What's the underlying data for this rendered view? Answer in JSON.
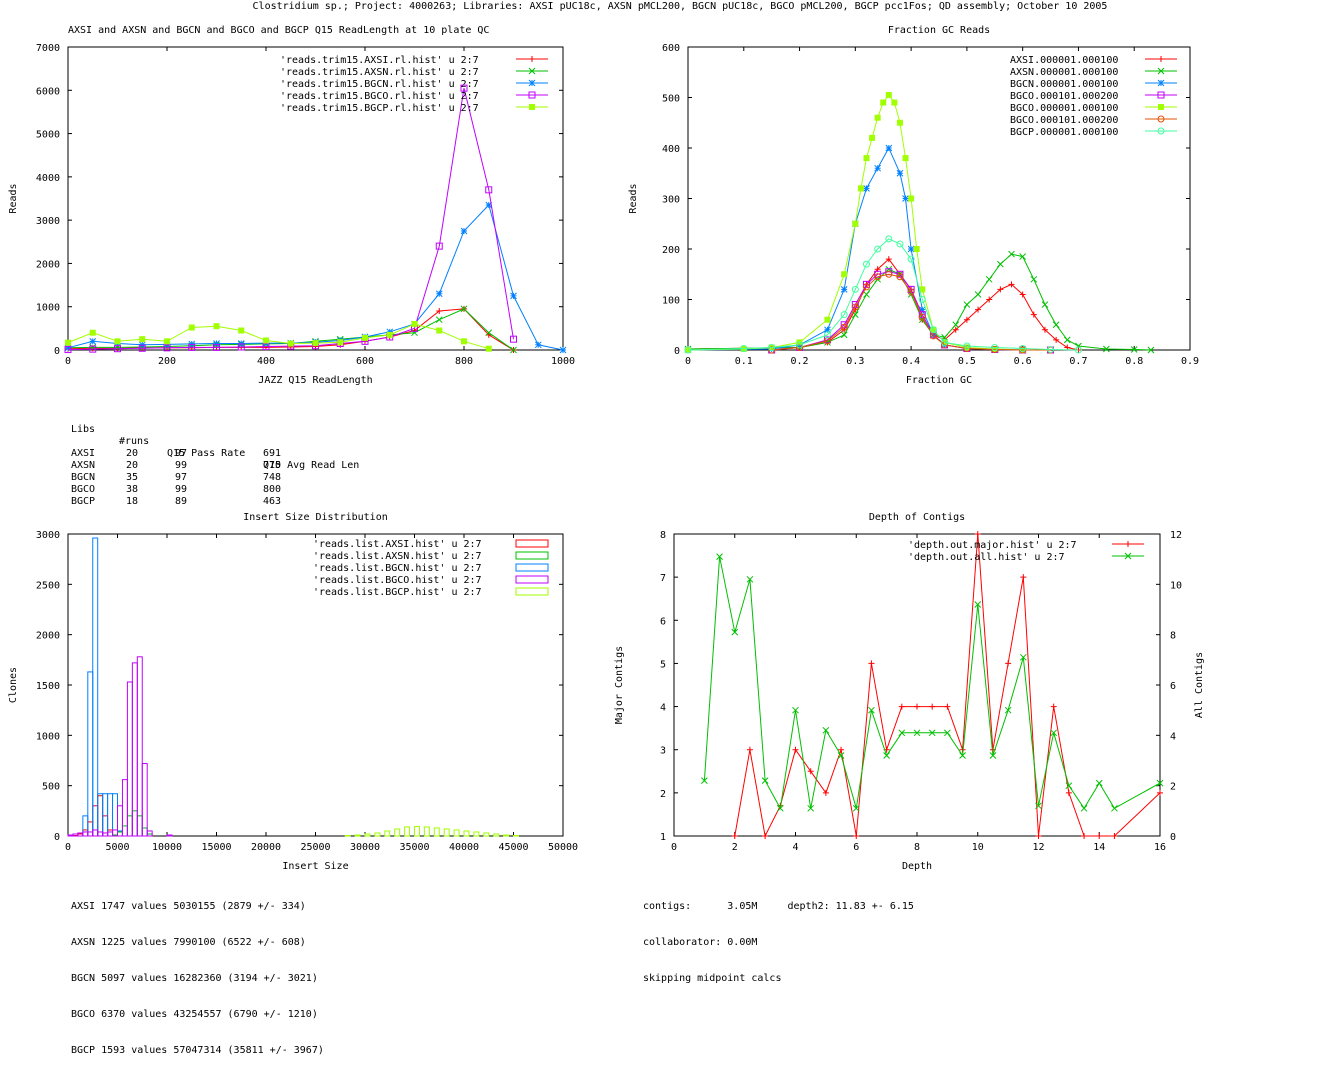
{
  "page_title": "Clostridium sp.; Project: 4000263; Libraries: AXSI pUC18c, AXSN pMCL200, BGCN pUC18c, BGCO pMCL200, BGCP pcc1Fos; QD assembly; October 10 2005",
  "colors": {
    "red": "#ff0000",
    "green": "#00c000",
    "blue": "#0080ff",
    "magenta": "#c000ff",
    "lime": "#a0ff00",
    "orange": "#e05000",
    "teal": "#40ffa0"
  },
  "chart_data": [
    {
      "type": "line",
      "title": "AXSI and AXSN and BGCN and BGCO and BGCP Q15 ReadLength at 10 plate QC",
      "xlabel": "JAZZ Q15 ReadLength",
      "ylabel": "Reads",
      "xlim": [
        0,
        1000
      ],
      "ylim": [
        0,
        7000
      ],
      "xticks": [
        0,
        200,
        400,
        600,
        800,
        1000
      ],
      "yticks": [
        0,
        1000,
        2000,
        3000,
        4000,
        5000,
        6000,
        7000
      ],
      "legend_position": "top-right",
      "series": [
        {
          "name": "'reads.trim15.AXSI.rl.hist' u 2:7",
          "color": "red",
          "marker": "plus",
          "x": [
            0,
            50,
            100,
            150,
            200,
            250,
            300,
            350,
            400,
            450,
            500,
            550,
            600,
            650,
            700,
            750,
            800,
            850,
            900
          ],
          "y": [
            30,
            40,
            40,
            50,
            50,
            50,
            60,
            60,
            60,
            70,
            80,
            120,
            200,
            300,
            450,
            900,
            950,
            350,
            0
          ]
        },
        {
          "name": "'reads.trim15.AXSN.rl.hist' u 2:7",
          "color": "green",
          "marker": "x",
          "x": [
            0,
            50,
            100,
            150,
            200,
            250,
            300,
            350,
            400,
            450,
            500,
            550,
            600,
            650,
            700,
            750,
            800,
            850,
            900
          ],
          "y": [
            50,
            60,
            60,
            70,
            80,
            100,
            120,
            130,
            140,
            150,
            200,
            250,
            300,
            350,
            400,
            700,
            950,
            400,
            0
          ]
        },
        {
          "name": "'reads.trim15.BGCN.rl.hist' u 2:7",
          "color": "blue",
          "marker": "star",
          "x": [
            0,
            50,
            100,
            150,
            200,
            250,
            300,
            350,
            400,
            450,
            500,
            550,
            600,
            650,
            700,
            750,
            800,
            850,
            900,
            950,
            1000
          ],
          "y": [
            50,
            200,
            150,
            120,
            130,
            140,
            150,
            150,
            160,
            160,
            180,
            220,
            300,
            420,
            600,
            1300,
            2750,
            3350,
            1250,
            120,
            0
          ]
        },
        {
          "name": "'reads.trim15.BGCO.rl.hist' u 2:7",
          "color": "magenta",
          "marker": "square",
          "x": [
            0,
            50,
            100,
            150,
            200,
            250,
            300,
            350,
            400,
            450,
            500,
            550,
            600,
            650,
            700,
            750,
            800,
            850,
            900
          ],
          "y": [
            10,
            20,
            30,
            40,
            50,
            60,
            60,
            70,
            80,
            90,
            100,
            150,
            200,
            300,
            500,
            2400,
            6050,
            3700,
            250
          ]
        },
        {
          "name": "'reads.trim15.BGCP.rl.hist' u 2:7",
          "color": "lime",
          "marker": "filled-square",
          "x": [
            0,
            50,
            100,
            150,
            200,
            250,
            300,
            350,
            400,
            450,
            500,
            550,
            600,
            650,
            700,
            750,
            800,
            850
          ],
          "y": [
            170,
            400,
            200,
            250,
            200,
            520,
            550,
            450,
            220,
            150,
            160,
            180,
            280,
            350,
            600,
            450,
            200,
            30
          ]
        }
      ]
    },
    {
      "type": "line",
      "title": "Fraction GC Reads",
      "xlabel": "Fraction GC",
      "ylabel": "Reads",
      "xlim": [
        0,
        0.9
      ],
      "ylim": [
        0,
        600
      ],
      "xticks": [
        0,
        0.1,
        0.2,
        0.3,
        0.4,
        0.5,
        0.6,
        0.7,
        0.8,
        0.9
      ],
      "yticks": [
        0,
        100,
        200,
        300,
        400,
        500,
        600
      ],
      "legend_position": "top-right",
      "series": [
        {
          "name": "AXSI.000001.000100",
          "color": "red",
          "marker": "plus",
          "x": [
            0.0,
            0.2,
            0.25,
            0.28,
            0.3,
            0.32,
            0.34,
            0.36,
            0.38,
            0.4,
            0.42,
            0.44,
            0.46,
            0.48,
            0.5,
            0.52,
            0.54,
            0.56,
            0.58,
            0.6,
            0.62,
            0.64,
            0.66,
            0.68,
            0.7
          ],
          "y": [
            2,
            5,
            15,
            40,
            80,
            130,
            160,
            180,
            150,
            120,
            60,
            30,
            20,
            40,
            60,
            80,
            100,
            120,
            130,
            110,
            70,
            40,
            20,
            5,
            0
          ]
        },
        {
          "name": "AXSN.000001.000100",
          "color": "green",
          "marker": "x",
          "x": [
            0.0,
            0.2,
            0.25,
            0.28,
            0.3,
            0.32,
            0.34,
            0.36,
            0.38,
            0.4,
            0.42,
            0.44,
            0.46,
            0.48,
            0.5,
            0.52,
            0.54,
            0.56,
            0.58,
            0.6,
            0.62,
            0.64,
            0.66,
            0.68,
            0.7,
            0.75,
            0.8,
            0.83
          ],
          "y": [
            2,
            5,
            15,
            30,
            70,
            110,
            140,
            160,
            150,
            110,
            60,
            30,
            25,
            50,
            90,
            110,
            140,
            170,
            190,
            185,
            140,
            90,
            50,
            20,
            8,
            2,
            1,
            0
          ]
        },
        {
          "name": "BGCN.000001.000100",
          "color": "blue",
          "marker": "star",
          "x": [
            0.0,
            0.15,
            0.2,
            0.25,
            0.28,
            0.3,
            0.32,
            0.34,
            0.36,
            0.38,
            0.39,
            0.4,
            0.42,
            0.44,
            0.46,
            0.5,
            0.55,
            0.6
          ],
          "y": [
            0,
            2,
            10,
            40,
            120,
            250,
            320,
            360,
            400,
            350,
            300,
            200,
            80,
            30,
            10,
            3,
            1,
            0
          ]
        },
        {
          "name": "BGCO.000101.000200",
          "color": "magenta",
          "marker": "square",
          "x": [
            0.15,
            0.2,
            0.25,
            0.28,
            0.3,
            0.32,
            0.34,
            0.36,
            0.38,
            0.4,
            0.42,
            0.44,
            0.46,
            0.5,
            0.55,
            0.6,
            0.65
          ],
          "y": [
            0,
            5,
            20,
            50,
            90,
            130,
            150,
            155,
            150,
            120,
            70,
            30,
            10,
            3,
            1,
            0,
            0
          ]
        },
        {
          "name": "BGCO.000001.000100",
          "color": "lime",
          "marker": "filled-square",
          "x": [
            0.0,
            0.1,
            0.15,
            0.2,
            0.25,
            0.28,
            0.3,
            0.31,
            0.32,
            0.33,
            0.34,
            0.35,
            0.36,
            0.37,
            0.38,
            0.39,
            0.4,
            0.41,
            0.42,
            0.44,
            0.46,
            0.5,
            0.55,
            0.6
          ],
          "y": [
            0,
            2,
            5,
            15,
            60,
            150,
            250,
            320,
            380,
            420,
            460,
            490,
            505,
            490,
            450,
            380,
            300,
            200,
            120,
            40,
            15,
            5,
            2,
            0
          ]
        },
        {
          "name": "BGCO.000101.000200",
          "color": "orange",
          "marker": "circle",
          "x": [
            0.15,
            0.2,
            0.25,
            0.28,
            0.3,
            0.32,
            0.34,
            0.36,
            0.38,
            0.4,
            0.42,
            0.44,
            0.46,
            0.5,
            0.55,
            0.6,
            0.65
          ],
          "y": [
            0,
            5,
            18,
            45,
            85,
            125,
            145,
            150,
            145,
            115,
            65,
            28,
            10,
            3,
            1,
            0,
            0
          ]
        },
        {
          "name": "BGCP.000001.000100",
          "color": "teal",
          "marker": "circle",
          "x": [
            0.0,
            0.1,
            0.15,
            0.2,
            0.25,
            0.28,
            0.3,
            0.32,
            0.34,
            0.36,
            0.38,
            0.4,
            0.42,
            0.44,
            0.46,
            0.5,
            0.55,
            0.6,
            0.65,
            0.7
          ],
          "y": [
            0,
            3,
            5,
            10,
            30,
            70,
            120,
            170,
            200,
            220,
            210,
            180,
            100,
            40,
            15,
            8,
            5,
            3,
            1,
            0
          ]
        }
      ]
    },
    {
      "type": "bar",
      "title": "Insert Size Distribution",
      "xlabel": "Insert Size",
      "ylabel": "Clones",
      "xlim": [
        0,
        50000
      ],
      "ylim": [
        0,
        3000
      ],
      "xticks": [
        0,
        5000,
        10000,
        15000,
        20000,
        25000,
        30000,
        35000,
        40000,
        45000,
        50000
      ],
      "yticks": [
        0,
        500,
        1000,
        1500,
        2000,
        2500,
        3000
      ],
      "bin_width": 500,
      "legend_position": "top-right",
      "series": [
        {
          "name": "'reads.list.AXSI.hist' u 2:7",
          "color": "red",
          "x": [
            500,
            1000,
            1500,
            2000,
            2500,
            3000,
            3500,
            4000,
            4500
          ],
          "y": [
            5,
            20,
            60,
            140,
            300,
            400,
            200,
            60,
            10
          ]
        },
        {
          "name": "'reads.list.AXSN.hist' u 2:7",
          "color": "green",
          "x": [
            4500,
            5000,
            5500,
            6000,
            6500,
            7000,
            7500,
            8000
          ],
          "y": [
            10,
            40,
            100,
            200,
            250,
            200,
            80,
            20
          ]
        },
        {
          "name": "'reads.list.BGCN.hist' u 2:7",
          "color": "blue",
          "x": [
            1000,
            1500,
            2000,
            2500,
            3000,
            3500,
            4000,
            4500,
            5000
          ],
          "y": [
            30,
            200,
            1630,
            2960,
            420,
            420,
            420,
            420,
            50
          ]
        },
        {
          "name": "'reads.list.BGCO.hist' u 2:7",
          "color": "magenta",
          "x": [
            0,
            500,
            1000,
            1500,
            2000,
            2500,
            3000,
            3500,
            4000,
            4500,
            5000,
            5500,
            6000,
            6500,
            7000,
            7500,
            8000,
            10000
          ],
          "y": [
            10,
            20,
            30,
            40,
            40,
            60,
            40,
            30,
            40,
            60,
            300,
            560,
            1530,
            1720,
            1780,
            720,
            50,
            10
          ]
        },
        {
          "name": "'reads.list.BGCP.hist' u 2:7",
          "color": "lime",
          "x": [
            28000,
            29000,
            30000,
            31000,
            32000,
            33000,
            34000,
            35000,
            36000,
            37000,
            38000,
            39000,
            40000,
            41000,
            42000,
            43000,
            44000,
            45000
          ],
          "y": [
            5,
            10,
            20,
            30,
            50,
            70,
            90,
            95,
            90,
            80,
            70,
            60,
            50,
            40,
            30,
            20,
            10,
            5
          ]
        }
      ]
    },
    {
      "type": "line",
      "title": "Depth of Contigs",
      "xlabel": "Depth",
      "ylabel": "Major Contigs",
      "y2label": "All Contigs",
      "xlim": [
        0,
        16
      ],
      "ylim": [
        1,
        8
      ],
      "y2lim": [
        0,
        12
      ],
      "xticks": [
        0,
        2,
        4,
        6,
        8,
        10,
        12,
        14,
        16
      ],
      "yticks": [
        1,
        2,
        3,
        4,
        5,
        6,
        7,
        8
      ],
      "y2ticks": [
        0,
        2,
        4,
        6,
        8,
        10,
        12
      ],
      "legend_position": "top-right",
      "series": [
        {
          "name": "'depth.out.major.hist' u 2:7",
          "color": "red",
          "marker": "plus",
          "axis": "y",
          "x": [
            2,
            2.5,
            3,
            3.5,
            4,
            4.5,
            5,
            5.5,
            6,
            6.5,
            7,
            7.5,
            8,
            8.5,
            9,
            9.5,
            10,
            10.5,
            11,
            11.5,
            12,
            12.5,
            13,
            13.5,
            14,
            14.5,
            16
          ],
          "y": [
            1,
            3,
            1,
            1.7,
            3,
            2.5,
            2,
            3,
            1,
            5,
            3,
            4,
            4,
            4,
            4,
            3,
            8,
            3,
            5,
            7,
            1,
            4,
            2,
            1,
            1,
            1,
            2
          ]
        },
        {
          "name": "'depth.out.all.hist' u 2:7",
          "color": "green",
          "marker": "x",
          "axis": "y2",
          "x": [
            1,
            1.5,
            2,
            2.5,
            3,
            3.5,
            4,
            4.5,
            5,
            5.5,
            6,
            6.5,
            7,
            7.5,
            8,
            8.5,
            9,
            9.5,
            10,
            10.5,
            11,
            11.5,
            12,
            12.5,
            13,
            13.5,
            14,
            14.5,
            16
          ],
          "y": [
            2.2,
            11.1,
            8.1,
            10.2,
            2.2,
            1.1,
            5,
            1.1,
            4.2,
            3.2,
            1.1,
            5,
            3.2,
            4.1,
            4.1,
            4.1,
            4.1,
            3.2,
            9.2,
            3.2,
            5,
            7.1,
            1.2,
            4.1,
            2,
            1.1,
            2.1,
            1.1,
            2.1
          ]
        }
      ]
    }
  ],
  "stats": {
    "readlength": {
      "header": [
        "Libs",
        "#runs",
        "Q15 Pass Rate",
        "Q15 Avg Read Len"
      ],
      "rows": [
        [
          "AXSI",
          "20",
          "97",
          "691"
        ],
        [
          "AXSN",
          "20",
          "99",
          "770"
        ],
        [
          "BGCN",
          "35",
          "97",
          "748"
        ],
        [
          "BGCO",
          "38",
          "99",
          "800"
        ],
        [
          "BGCP",
          "18",
          "89",
          "463"
        ]
      ]
    },
    "insert_lines": [
      "AXSI 1747 values 5030155 (2879 +/- 334)",
      "AXSN 1225 values 7990100 (6522 +/- 608)",
      "BGCN 5097 values 16282360 (3194 +/- 3021)",
      "BGCO 6370 values 43254557 (6790 +/- 1210)",
      "BGCP 1593 values 57047314 (35811 +/- 3967)"
    ],
    "depth_lines": [
      "contigs:      3.05M     depth2: 11.83 +- 6.15",
      "collaborator: 0.00M",
      "skipping midpoint calcs"
    ]
  }
}
